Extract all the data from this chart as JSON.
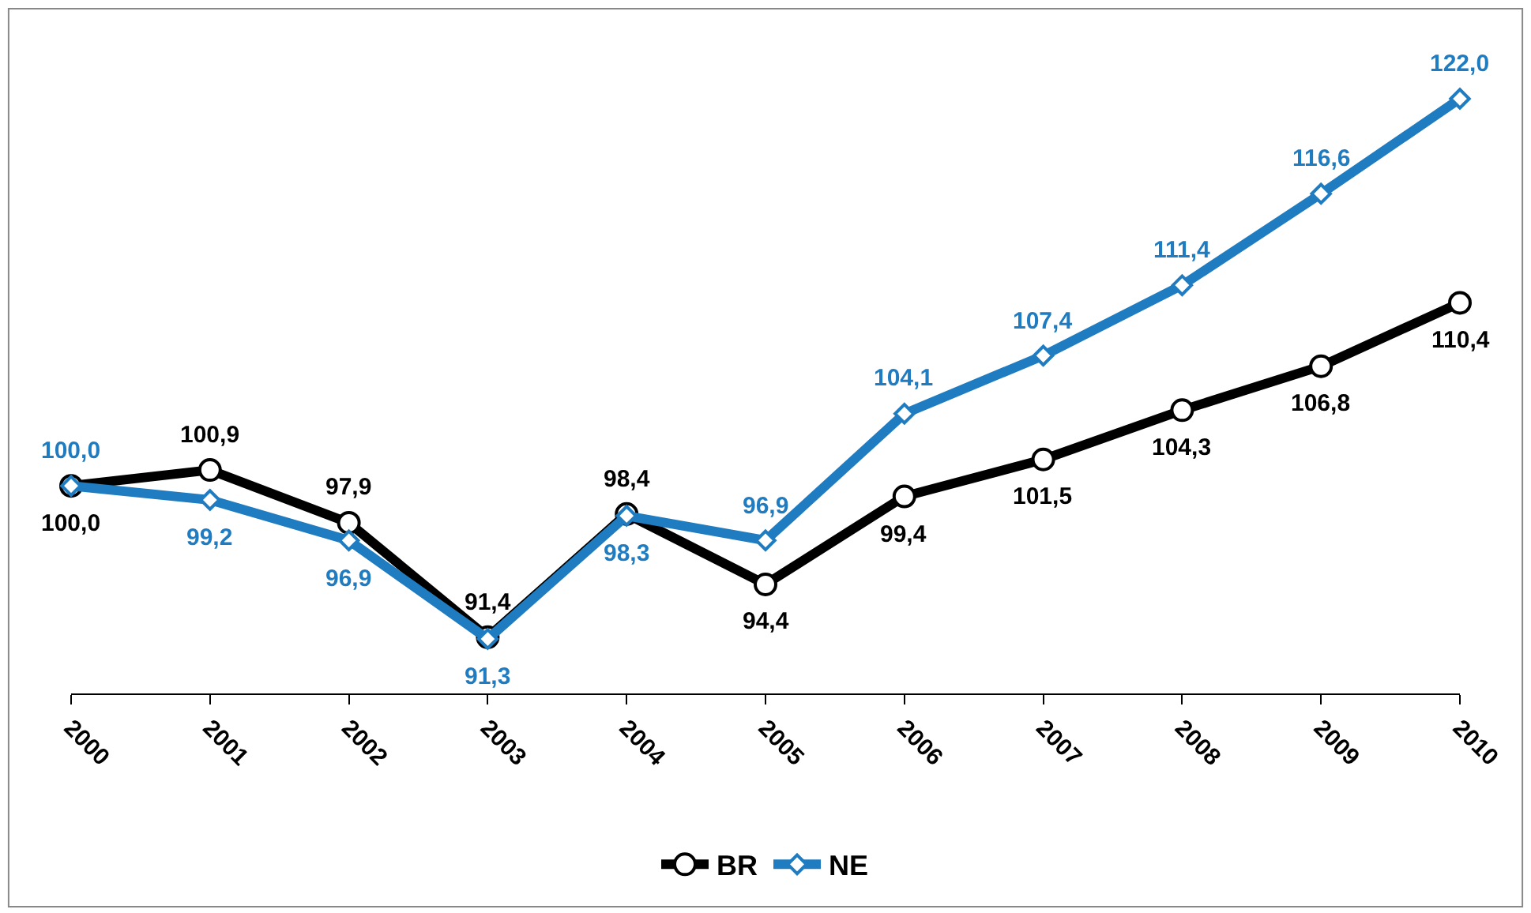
{
  "chart_data": {
    "type": "line",
    "categories": [
      "2000",
      "2001",
      "2002",
      "2003",
      "2004",
      "2005",
      "2006",
      "2007",
      "2008",
      "2009",
      "2010"
    ],
    "series": [
      {
        "name": "BR",
        "color": "#000000",
        "marker": "circle",
        "values": [
          100.0,
          100.9,
          97.9,
          91.4,
          98.4,
          94.4,
          99.4,
          101.5,
          104.3,
          106.8,
          110.4
        ],
        "value_labels": [
          "100,0",
          "100,9",
          "97,9",
          "91,4",
          "98,4",
          "94,4",
          "99,4",
          "101,5",
          "104,3",
          "106,8",
          "110,4"
        ]
      },
      {
        "name": "NE",
        "color": "#1f7cc1",
        "marker": "diamond",
        "values": [
          100.0,
          99.2,
          96.9,
          91.3,
          98.3,
          96.9,
          104.1,
          107.4,
          111.4,
          116.6,
          122.0
        ],
        "value_labels": [
          "100,0",
          "99,2",
          "96,9",
          "91,3",
          "98,3",
          "96,9",
          "104,1",
          "107,4",
          "111,4",
          "116,6",
          "122,0"
        ]
      }
    ],
    "legend": "bottom"
  }
}
